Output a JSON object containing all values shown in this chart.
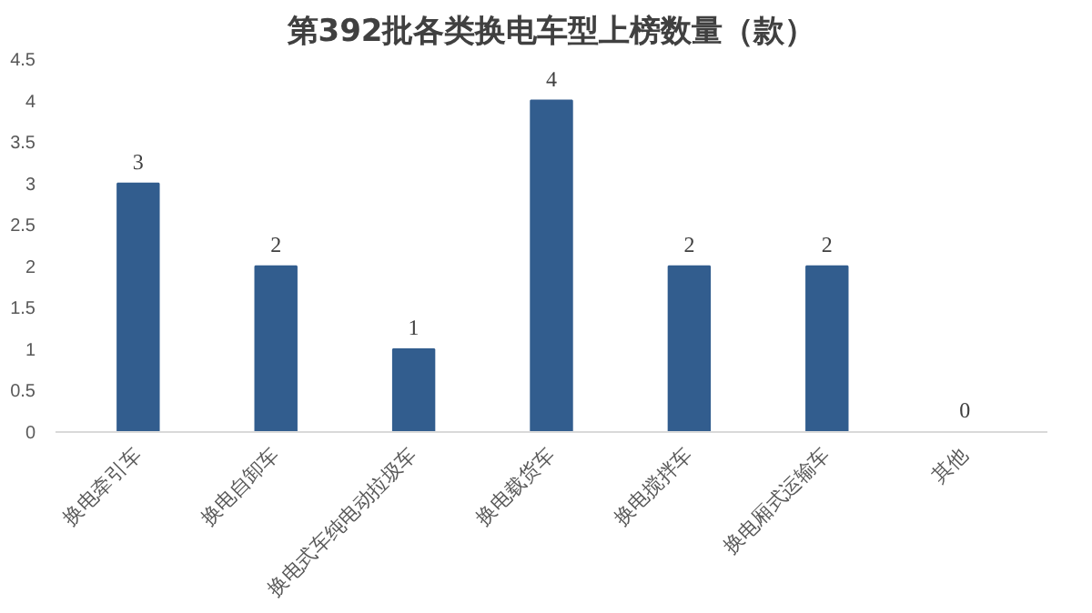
{
  "chart_data": {
    "type": "bar",
    "title": "第392批各类换电车型上榜数量（款）",
    "categories": [
      "换电牵引车",
      "换电自卸车",
      "换电式车纯电动拉圾车",
      "换电载货车",
      "换电搅拌车",
      "换电厢式运输车",
      "其他"
    ],
    "values": [
      3,
      2,
      1,
      4,
      2,
      2,
      0
    ],
    "color": "#325d8e",
    "ylim": [
      0,
      4.5
    ],
    "yticks": [
      0,
      {
        "value": 0.5,
        "label": "0.5"
      },
      1,
      {
        "value": 1.5,
        "label": "1.5"
      },
      2,
      {
        "value": 2.5,
        "label": "2.5"
      },
      3,
      {
        "value": 3.5,
        "label": "3.5"
      },
      4,
      {
        "value": 4.5,
        "label": "4.5"
      }
    ],
    "data_labels": true,
    "grid": false
  }
}
